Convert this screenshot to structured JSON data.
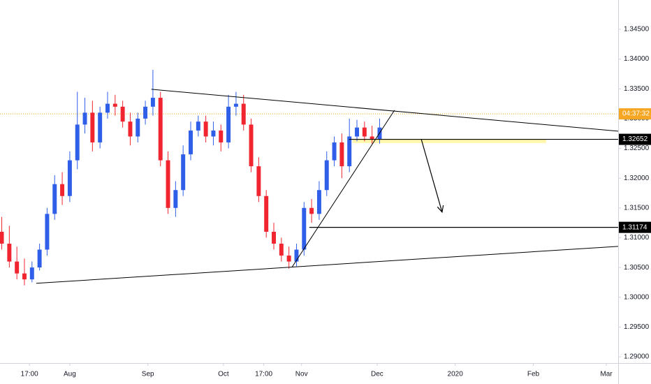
{
  "chart_data": {
    "type": "candlestick",
    "x": [
      4,
      7,
      10,
      13,
      16,
      19,
      22,
      25,
      28,
      31,
      34,
      37,
      40,
      43,
      46,
      49,
      52,
      55,
      58,
      61,
      64,
      67,
      70,
      73,
      76,
      79,
      82,
      85,
      88,
      91,
      94,
      97,
      100,
      103,
      106,
      109,
      112,
      115,
      118,
      121,
      124,
      127,
      130,
      133,
      136,
      139,
      142,
      145,
      148,
      151,
      154
    ],
    "open": [
      1.311,
      1.309,
      1.306,
      1.304,
      1.303,
      1.305,
      1.308,
      1.314,
      1.319,
      1.317,
      1.323,
      1.329,
      1.331,
      1.326,
      1.331,
      1.3325,
      1.332,
      1.3295,
      1.327,
      1.33,
      1.332,
      1.3335,
      1.323,
      1.315,
      1.318,
      1.324,
      1.328,
      1.3295,
      1.327,
      1.328,
      1.326,
      1.332,
      1.3325,
      1.329,
      1.322,
      1.317,
      1.311,
      1.309,
      1.307,
      1.306,
      1.308,
      1.315,
      1.314,
      1.318,
      1.323,
      1.326,
      1.322,
      1.327,
      1.3285,
      1.327,
      1.3265
    ],
    "high": [
      1.3135,
      1.312,
      1.3085,
      1.3065,
      1.306,
      1.309,
      1.315,
      1.3205,
      1.321,
      1.3245,
      1.3345,
      1.3335,
      1.333,
      1.332,
      1.3345,
      1.334,
      1.333,
      1.331,
      1.331,
      1.333,
      1.3382,
      1.3345,
      1.3245,
      1.3195,
      1.3255,
      1.3295,
      1.3305,
      1.3305,
      1.3295,
      1.329,
      1.334,
      1.3345,
      1.334,
      1.33,
      1.3235,
      1.318,
      1.3125,
      1.31,
      1.3085,
      1.309,
      1.316,
      1.3165,
      1.3195,
      1.3245,
      1.327,
      1.3275,
      1.33,
      1.3298,
      1.3295,
      1.3288,
      1.33
    ],
    "low": [
      1.308,
      1.305,
      1.303,
      1.302,
      1.3025,
      1.3045,
      1.307,
      1.313,
      1.3155,
      1.316,
      1.3215,
      1.3275,
      1.3245,
      1.325,
      1.33,
      1.3305,
      1.3285,
      1.3255,
      1.326,
      1.329,
      1.3305,
      1.322,
      1.314,
      1.3135,
      1.317,
      1.323,
      1.327,
      1.326,
      1.3255,
      1.3245,
      1.325,
      1.3305,
      1.328,
      1.321,
      1.316,
      1.31,
      1.308,
      1.306,
      1.3048,
      1.3052,
      1.307,
      1.3125,
      1.313,
      1.317,
      1.322,
      1.32,
      1.321,
      1.3262,
      1.3262,
      1.3258,
      1.3258
    ],
    "close": [
      1.309,
      1.306,
      1.304,
      1.303,
      1.305,
      1.308,
      1.314,
      1.319,
      1.317,
      1.323,
      1.329,
      1.331,
      1.326,
      1.331,
      1.3325,
      1.332,
      1.3295,
      1.327,
      1.33,
      1.332,
      1.3335,
      1.323,
      1.315,
      1.318,
      1.324,
      1.328,
      1.3295,
      1.327,
      1.328,
      1.326,
      1.332,
      1.3325,
      1.329,
      1.322,
      1.317,
      1.311,
      1.309,
      1.307,
      1.306,
      1.308,
      1.315,
      1.314,
      1.318,
      1.323,
      1.326,
      1.322,
      1.327,
      1.3285,
      1.327,
      1.3265,
      1.3285
    ],
    "up_color": "#2f5fe8",
    "down_color": "#f0252f",
    "xlim": [
      3.3,
      248.7
    ],
    "xticks": [
      {
        "value": 15,
        "label": "17:00"
      },
      {
        "value": 31,
        "label": "Aug"
      },
      {
        "value": 62,
        "label": "Sep"
      },
      {
        "value": 92,
        "label": "Oct"
      },
      {
        "value": 108,
        "label": "17:00"
      },
      {
        "value": 123,
        "label": "Nov"
      },
      {
        "value": 153,
        "label": "Dec"
      },
      {
        "value": 184,
        "label": "2020"
      },
      {
        "value": 215,
        "label": "Feb"
      },
      {
        "value": 244,
        "label": "Mar"
      }
    ],
    "ylim": [
      1.28895,
      1.34992
    ],
    "yticks": [
      {
        "value": 1.29,
        "label": "1.29000"
      },
      {
        "value": 1.295,
        "label": "1.29500"
      },
      {
        "value": 1.3,
        "label": "1.30000"
      },
      {
        "value": 1.305,
        "label": "1.30500"
      },
      {
        "value": 1.31,
        "label": "1.31000"
      },
      {
        "value": 1.315,
        "label": "1.31500"
      },
      {
        "value": 1.32,
        "label": "1.32000"
      },
      {
        "value": 1.325,
        "label": "1.32500"
      },
      {
        "value": 1.33,
        "label": "1.33000"
      },
      {
        "value": 1.335,
        "label": "1.33500"
      },
      {
        "value": 1.34,
        "label": "1.34000"
      },
      {
        "value": 1.345,
        "label": "1.34500"
      }
    ],
    "grid": false,
    "current_price": 1.3308,
    "countdown": "04:37:32",
    "price_labels": [
      {
        "value": 1.32652,
        "label": "1.32652"
      },
      {
        "value": 1.31174,
        "label": "1.31174"
      }
    ],
    "trendlines": [
      {
        "x": [
          63.4,
          248.7
        ],
        "y": [
          1.33492,
          1.32789
        ]
      },
      {
        "x": [
          17.7,
          248.7
        ],
        "y": [
          1.30234,
          1.30855
        ]
      },
      {
        "x": [
          119.2,
          159.9
        ],
        "y": [
          1.30504,
          1.33141
        ]
      }
    ],
    "horizontal_lines": [
      {
        "x": 141.9,
        "y": 1.32652
      },
      {
        "x": 126.1,
        "y": 1.31174
      }
    ],
    "zone": {
      "x": [
        143.3,
        220.1
      ],
      "y": [
        1.3266,
        1.3259
      ]
    },
    "arrow": {
      "x": [
        170.5,
        178.8
      ],
      "y": [
        1.3266,
        1.3143
      ]
    }
  }
}
